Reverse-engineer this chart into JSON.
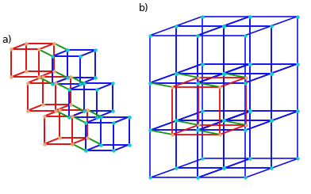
{
  "bg": "#ffffff",
  "rc": "#dd1111",
  "bc": "#1111ee",
  "gc": "#119911",
  "rnc": "#e8a878",
  "bnc": "#11cccc",
  "lw_a": 1.4,
  "lw_b": 1.3,
  "ns_a": 3.0,
  "ns_b": 2.8,
  "label_a": "a)",
  "label_b": "b)",
  "label_fs": 9
}
